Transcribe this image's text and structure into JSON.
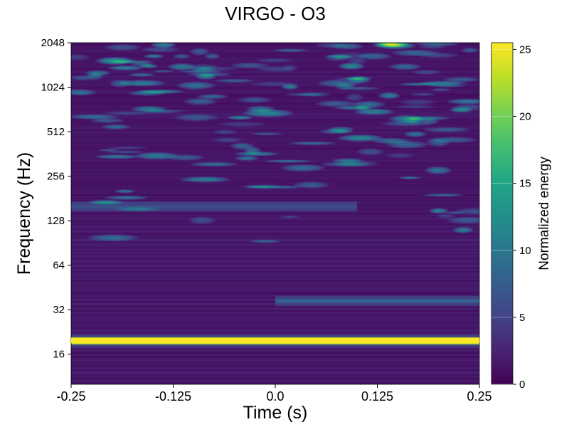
{
  "chart_data": {
    "type": "heatmap",
    "title": "VIRGO - O3",
    "xlabel": "Time (s)",
    "ylabel": "Frequency (Hz)",
    "x_ticks": [
      "-0.25",
      "-0.125",
      "0.0",
      "0.125",
      "0.25"
    ],
    "x_tick_values": [
      -0.25,
      -0.125,
      0.0,
      0.125,
      0.25
    ],
    "xlim": [
      -0.25,
      0.25
    ],
    "y_scale": "log2",
    "y_ticks": [
      "16",
      "32",
      "64",
      "128",
      "256",
      "512",
      "1024",
      "2048"
    ],
    "y_tick_values": [
      16,
      32,
      64,
      128,
      256,
      512,
      1024,
      2048
    ],
    "ylim": [
      10,
      2048
    ],
    "colorbar": {
      "label": "Normalized energy",
      "ticks": [
        "0",
        "5",
        "10",
        "15",
        "20",
        "25"
      ],
      "tick_values": [
        0,
        5,
        10,
        15,
        20,
        25
      ],
      "range": [
        0,
        25.5
      ],
      "colormap": "viridis"
    },
    "features": [
      {
        "description": "strong persistent line",
        "frequency_hz": 19.8,
        "t_start": -0.25,
        "t_end": 0.25,
        "energy": 25.5
      },
      {
        "description": "weak line",
        "frequency_hz": 37,
        "t_start": 0.0,
        "t_end": 0.25,
        "energy": 8
      },
      {
        "description": "weak line",
        "frequency_hz": 160,
        "t_start": -0.25,
        "t_end": 0.1,
        "energy": 6
      }
    ]
  },
  "colors": {
    "viridis_low": "#440154",
    "viridis_high": "#fde725"
  }
}
